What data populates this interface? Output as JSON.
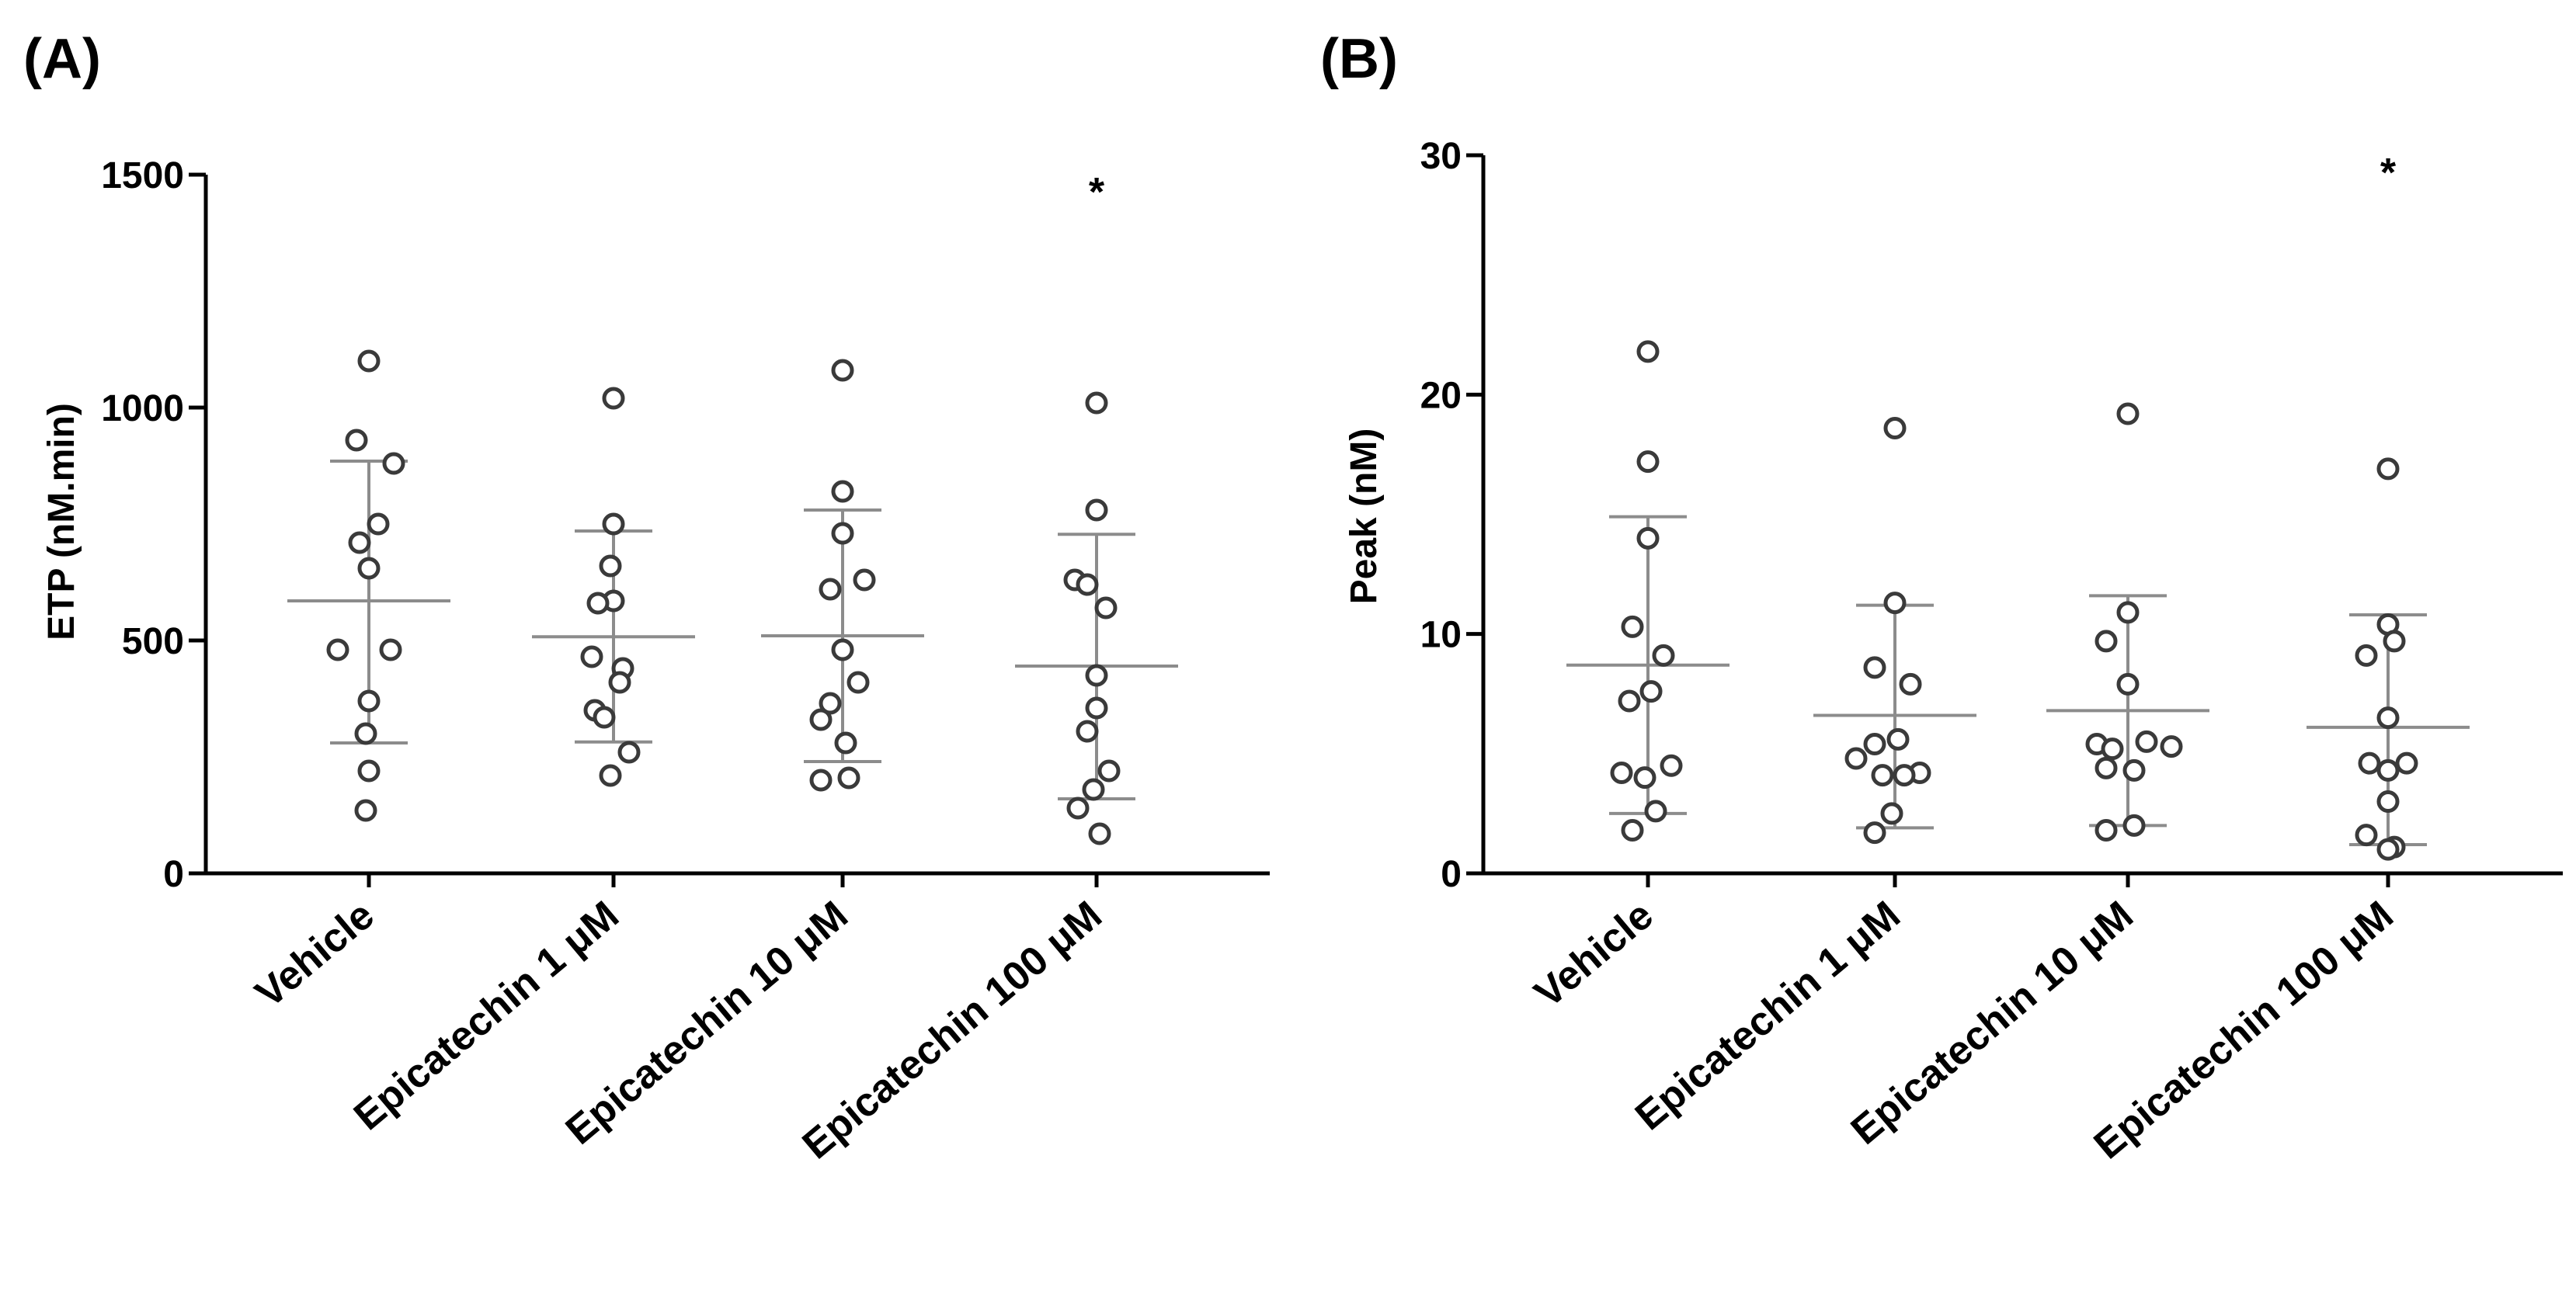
{
  "figure": {
    "panels": [
      {
        "label": "(A)"
      },
      {
        "label": "(B)"
      }
    ]
  },
  "chart_data": [
    {
      "type": "scatter",
      "panel": "(A)",
      "title": "",
      "xlabel": "",
      "ylabel": "ETP (nM.min)",
      "ylim": [
        0,
        1500
      ],
      "yticks": [
        0,
        500,
        1000,
        1500
      ],
      "ytick_labels": [
        "0",
        "500",
        "1000",
        "1500"
      ],
      "grid": false,
      "categories": [
        "Vehicle",
        "Epicatechin 1 μM",
        "Epicatechin 10 μM",
        "Epicatechin 100 μM"
      ],
      "series": [
        {
          "name": "Vehicle",
          "mean": 585,
          "sd_low": 280,
          "sd_high": 885,
          "points": [
            1100,
            930,
            880,
            750,
            710,
            655,
            480,
            480,
            370,
            300,
            220,
            135
          ]
        },
        {
          "name": "Epicatechin 1 μM",
          "mean": 508,
          "sd_low": 282,
          "sd_high": 735,
          "points": [
            1020,
            750,
            660,
            585,
            580,
            465,
            440,
            410,
            350,
            335,
            260,
            210
          ]
        },
        {
          "name": "Epicatechin 10 μM",
          "mean": 510,
          "sd_low": 240,
          "sd_high": 780,
          "points": [
            1080,
            820,
            730,
            630,
            610,
            480,
            410,
            365,
            330,
            280,
            205,
            200
          ]
        },
        {
          "name": "Epicatechin 100 μM",
          "mean": 445,
          "sd_low": 160,
          "sd_high": 728,
          "points": [
            1010,
            780,
            630,
            620,
            570,
            425,
            355,
            305,
            220,
            180,
            140,
            85
          ]
        }
      ],
      "annotations": [
        {
          "category": "Epicatechin 100 μM",
          "text": "*"
        }
      ]
    },
    {
      "type": "scatter",
      "panel": "(B)",
      "title": "",
      "xlabel": "",
      "ylabel": "Peak (nM)",
      "ylim": [
        0,
        30
      ],
      "yticks": [
        0,
        10,
        20,
        30
      ],
      "ytick_labels": [
        "0",
        "10",
        "20",
        "30"
      ],
      "grid": false,
      "categories": [
        "Vehicle",
        "Epicatechin 1 μM",
        "Epicatechin 10 μM",
        "Epicatechin 100 μM"
      ],
      "series": [
        {
          "name": "Vehicle",
          "mean": 8.7,
          "sd_low": 2.5,
          "sd_high": 14.9,
          "points": [
            21.8,
            17.2,
            14.0,
            10.3,
            9.1,
            7.6,
            7.2,
            4.5,
            4.2,
            4.0,
            2.6,
            1.8
          ]
        },
        {
          "name": "Epicatechin 1 μM",
          "mean": 6.6,
          "sd_low": 1.9,
          "sd_high": 11.2,
          "points": [
            18.6,
            11.3,
            8.6,
            7.9,
            5.6,
            5.4,
            4.8,
            4.2,
            4.1,
            4.1,
            2.5,
            1.7
          ]
        },
        {
          "name": "Epicatechin 10 μM",
          "mean": 6.8,
          "sd_low": 2.0,
          "sd_high": 11.6,
          "points": [
            19.2,
            10.9,
            9.7,
            7.9,
            5.5,
            5.4,
            5.3,
            5.2,
            4.4,
            4.3,
            2.0,
            1.8
          ]
        },
        {
          "name": "Epicatechin 100 μM",
          "mean": 6.1,
          "sd_low": 1.2,
          "sd_high": 10.8,
          "points": [
            16.9,
            10.4,
            9.7,
            9.1,
            6.5,
            4.6,
            4.6,
            4.3,
            3.0,
            1.6,
            1.1,
            1.0
          ]
        }
      ],
      "annotations": [
        {
          "category": "Epicatechin 100 μM",
          "text": "*"
        }
      ]
    }
  ]
}
